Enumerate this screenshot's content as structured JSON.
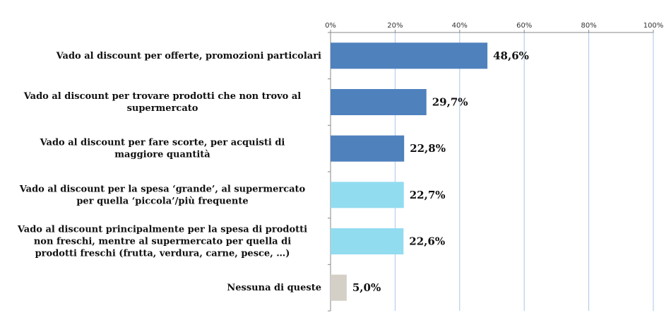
{
  "chart_data": {
    "type": "bar",
    "orientation": "horizontal",
    "categories": [
      [
        "Vado al discount per offerte, promozioni particolari"
      ],
      [
        "Vado al discount per trovare prodotti che non trovo al",
        "supermercato"
      ],
      [
        "Vado al discount per fare scorte, per acquisti di",
        "maggiore quantità"
      ],
      [
        "Vado al discount per la spesa ‘grande’, al supermercato",
        "per quella ‘piccola’/più frequente"
      ],
      [
        "Vado al discount principalmente per la spesa di prodotti",
        "non freschi, mentre al supermercato per quella di",
        "prodotti freschi (frutta, verdura, carne, pesce, …)"
      ],
      [
        "Nessuna di queste"
      ]
    ],
    "values": [
      48.6,
      29.7,
      22.8,
      22.7,
      22.6,
      5.0
    ],
    "value_labels": [
      "48,6%",
      "29,7%",
      "22,8%",
      "22,7%",
      "22,6%",
      "5,0%"
    ],
    "bar_colors": [
      "#4F81BD",
      "#4F81BD",
      "#4F81BD",
      "#92DCF0",
      "#92DCF0",
      "#D4D0C8"
    ],
    "xlim": [
      0,
      100
    ],
    "xticks": [
      0,
      20,
      40,
      60,
      80,
      100
    ],
    "xtick_labels": [
      "0%",
      "20%",
      "40%",
      "60%",
      "80%",
      "100%"
    ],
    "axis_position": "top",
    "grid": true,
    "grid_color": "#A9C6E8",
    "legend": "none"
  }
}
